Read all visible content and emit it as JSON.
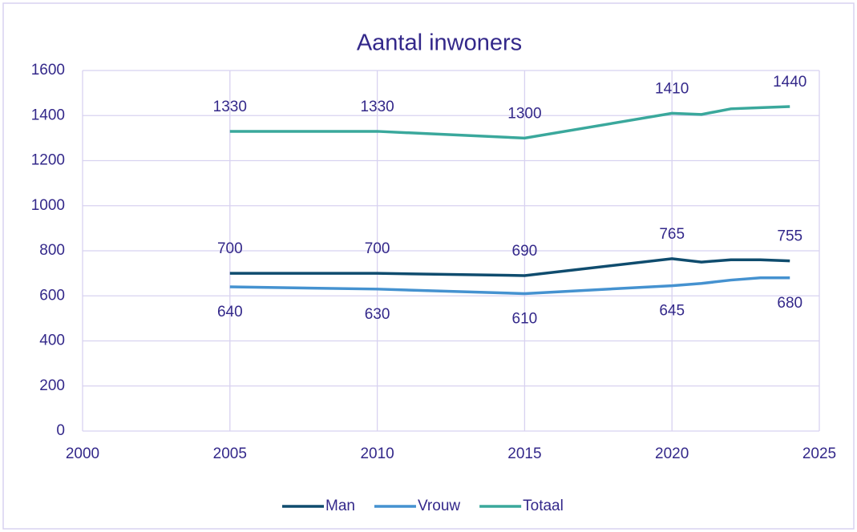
{
  "chart_data": {
    "type": "line",
    "title": "Aantal inwoners",
    "x": [
      2005,
      2010,
      2015,
      2020,
      2021,
      2022,
      2023,
      2024
    ],
    "series": [
      {
        "name": "Man",
        "color": "#0f4c6e",
        "values": [
          700,
          700,
          690,
          765,
          750,
          760,
          760,
          755
        ],
        "value_labels": [
          "700",
          "700",
          "690",
          "765",
          null,
          null,
          null,
          "755"
        ],
        "label_position": "above"
      },
      {
        "name": "Vrouw",
        "color": "#4592d0",
        "values": [
          640,
          630,
          610,
          645,
          655,
          670,
          680,
          680
        ],
        "value_labels": [
          "640",
          "630",
          "610",
          "645",
          null,
          null,
          null,
          "680"
        ],
        "label_position": "below"
      },
      {
        "name": "Totaal",
        "color": "#3aa89c",
        "values": [
          1330,
          1330,
          1300,
          1410,
          1405,
          1430,
          1435,
          1440
        ],
        "value_labels": [
          "1330",
          "1330",
          "1300",
          "1410",
          null,
          null,
          null,
          "1440"
        ],
        "label_position": "above"
      }
    ],
    "xlim": [
      2000,
      2025
    ],
    "xticks": [
      2000,
      2005,
      2010,
      2015,
      2020,
      2025
    ],
    "ylim": [
      0,
      1600
    ],
    "yticks": [
      0,
      200,
      400,
      600,
      800,
      1000,
      1200,
      1400,
      1600
    ],
    "grid": true,
    "legend": "bottom"
  }
}
